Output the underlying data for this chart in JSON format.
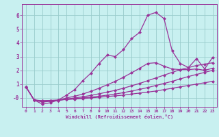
{
  "xlabel": "Windchill (Refroidissement éolien,°C)",
  "background_color": "#c8f0f0",
  "line_color": "#993399",
  "grid_color": "#99cccc",
  "xlim": [
    -0.5,
    23.5
  ],
  "ylim": [
    -0.65,
    6.8
  ],
  "xticks": [
    0,
    1,
    2,
    3,
    4,
    5,
    6,
    7,
    8,
    9,
    10,
    11,
    12,
    13,
    14,
    15,
    16,
    17,
    18,
    19,
    20,
    21,
    22,
    23
  ],
  "yticks": [
    0,
    1,
    2,
    3,
    4,
    5,
    6
  ],
  "ytick_labels": [
    "-0",
    "1",
    "2",
    "3",
    "4",
    "5",
    "6"
  ],
  "series": [
    [
      0.8,
      -0.15,
      -0.2,
      -0.18,
      -0.15,
      -0.12,
      -0.08,
      -0.05,
      -0.0,
      0.05,
      0.1,
      0.15,
      0.2,
      0.28,
      0.35,
      0.42,
      0.5,
      0.6,
      0.7,
      0.8,
      0.9,
      1.0,
      1.1,
      1.2
    ],
    [
      0.8,
      -0.15,
      -0.22,
      -0.2,
      -0.17,
      -0.1,
      -0.05,
      0.0,
      0.05,
      0.12,
      0.2,
      0.28,
      0.38,
      0.5,
      0.62,
      0.75,
      0.9,
      1.05,
      1.2,
      1.38,
      1.55,
      1.7,
      1.85,
      2.0
    ],
    [
      0.8,
      -0.15,
      -0.25,
      -0.22,
      -0.18,
      -0.08,
      0.0,
      0.08,
      0.18,
      0.3,
      0.42,
      0.55,
      0.7,
      0.88,
      1.05,
      1.25,
      1.45,
      1.65,
      1.85,
      2.05,
      2.2,
      2.35,
      2.45,
      2.55
    ],
    [
      0.8,
      -0.15,
      -0.3,
      -0.25,
      -0.18,
      0.0,
      0.12,
      0.28,
      0.48,
      0.7,
      0.95,
      1.2,
      1.5,
      1.82,
      2.15,
      2.5,
      2.55,
      2.3,
      2.1,
      2.05,
      2.05,
      2.1,
      2.0,
      2.15
    ],
    [
      0.8,
      -0.15,
      -0.45,
      -0.35,
      -0.15,
      0.2,
      0.6,
      1.25,
      1.8,
      2.5,
      3.1,
      3.0,
      3.5,
      4.3,
      4.75,
      6.0,
      6.2,
      5.75,
      3.4,
      2.5,
      2.2,
      2.85,
      2.1,
      2.95
    ]
  ],
  "marker": "D",
  "marker_size": 2.0,
  "line_width": 0.9
}
